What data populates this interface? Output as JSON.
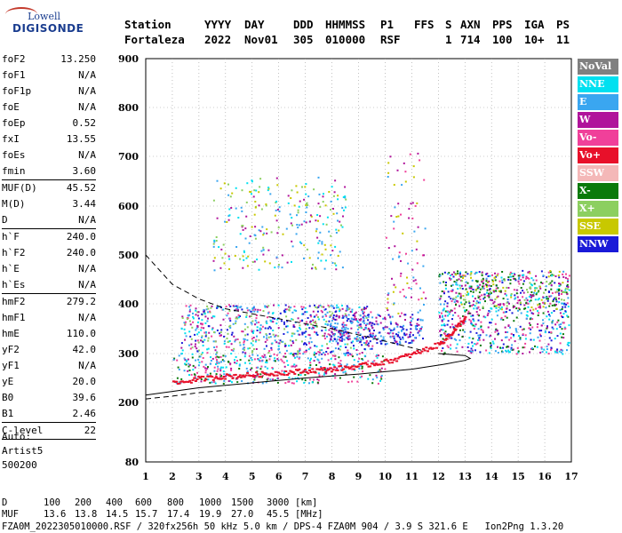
{
  "logo": {
    "top": "Lowell",
    "bottom": "DIGISONDE"
  },
  "header": {
    "row1": [
      "Station",
      "YYYY",
      "DAY",
      "DDD",
      "HHMMSS",
      "P1",
      "FFS",
      "S",
      "AXN",
      "PPS",
      "IGA",
      "PS"
    ],
    "row2": [
      "Fortaleza",
      "2022",
      "Nov01",
      "305",
      "010000",
      "RSF",
      "",
      "1",
      "714",
      "100",
      "10+",
      "11"
    ]
  },
  "params": [
    {
      "name": "foF2",
      "value": "13.250"
    },
    {
      "name": "foF1",
      "value": "N/A"
    },
    {
      "name": "foF1p",
      "value": "N/A"
    },
    {
      "name": "foE",
      "value": "N/A"
    },
    {
      "name": "foEp",
      "value": "0.52"
    },
    {
      "name": "fxI",
      "value": "13.55"
    },
    {
      "name": "foEs",
      "value": "N/A"
    },
    {
      "name": "fmin",
      "value": "3.60"
    },
    {
      "name": "MUF(D)",
      "value": "45.52"
    },
    {
      "name": "M(D)",
      "value": "3.44"
    },
    {
      "name": "D",
      "value": "N/A"
    },
    {
      "name": "h`F",
      "value": "240.0"
    },
    {
      "name": "h`F2",
      "value": "240.0"
    },
    {
      "name": "h`E",
      "value": "N/A"
    },
    {
      "name": "h`Es",
      "value": "N/A"
    },
    {
      "name": "hmF2",
      "value": "279.2"
    },
    {
      "name": "hmF1",
      "value": "N/A"
    },
    {
      "name": "hmE",
      "value": "110.0"
    },
    {
      "name": "yF2",
      "value": "42.0"
    },
    {
      "name": "yF1",
      "value": "N/A"
    },
    {
      "name": "yE",
      "value": "20.0"
    },
    {
      "name": "B0",
      "value": "39.6"
    },
    {
      "name": "B1",
      "value": "2.46"
    },
    {
      "name": "C-level",
      "value": "22"
    }
  ],
  "auto": {
    "l1": "Auto:",
    "l2": "Artist5",
    "l3": "500200"
  },
  "legend": [
    {
      "label": "NoVal",
      "color": "#808080"
    },
    {
      "label": "NNE",
      "color": "#00e0f0"
    },
    {
      "label": "E",
      "color": "#3aa6f0"
    },
    {
      "label": "W",
      "color": "#b0139b"
    },
    {
      "label": "Vo-",
      "color": "#f0409a"
    },
    {
      "label": "Vo+",
      "color": "#e8102a"
    },
    {
      "label": "SSW",
      "color": "#f4b8b8"
    },
    {
      "label": "X-",
      "color": "#0a7a0a"
    },
    {
      "label": "X+",
      "color": "#8ccf60"
    },
    {
      "label": "SSE",
      "color": "#c8c800"
    },
    {
      "label": "NNW",
      "color": "#1a1ad8"
    }
  ],
  "footer": {
    "d_label": "D",
    "d_vals": [
      "100",
      "200",
      "400",
      "600",
      "800",
      "1000",
      "1500",
      "3000"
    ],
    "d_unit": "[km]",
    "muf_label": "MUF",
    "muf_vals": [
      "13.6",
      "13.8",
      "14.5",
      "15.7",
      "17.4",
      "19.9",
      "27.0",
      "45.5"
    ],
    "muf_unit": "[MHz]",
    "info": "FZA0M_2022305010000.RSF / 320fx256h 50 kHz 5.0 km / DPS-4 FZA0M 904 / 3.9 S 321.6 E   Ion2Png 1.3.20"
  },
  "chart_data": {
    "type": "scatter",
    "x_ticks": [
      "1",
      "2",
      "3",
      "4",
      "5",
      "6",
      "7",
      "8",
      "9",
      "10",
      "11",
      "12",
      "13",
      "14",
      "15",
      "16",
      "17"
    ],
    "y_ticks": [
      "80",
      "200",
      "300",
      "400",
      "500",
      "600",
      "700",
      "800",
      "900"
    ],
    "xlim": [
      1,
      17
    ],
    "ylim": [
      80,
      900
    ],
    "grid": true,
    "legend_position": "right",
    "series": [
      {
        "name": "Vo+",
        "color": "#e8102a",
        "x": [
          2.0,
          3.0,
          4.0,
          5.0,
          6.0,
          7.0,
          8.0,
          9.0,
          10.0,
          11.0,
          12.0,
          12.5,
          13.0
        ],
        "y": [
          240,
          250,
          255,
          258,
          262,
          266,
          270,
          276,
          285,
          300,
          320,
          345,
          375
        ]
      }
    ]
  }
}
